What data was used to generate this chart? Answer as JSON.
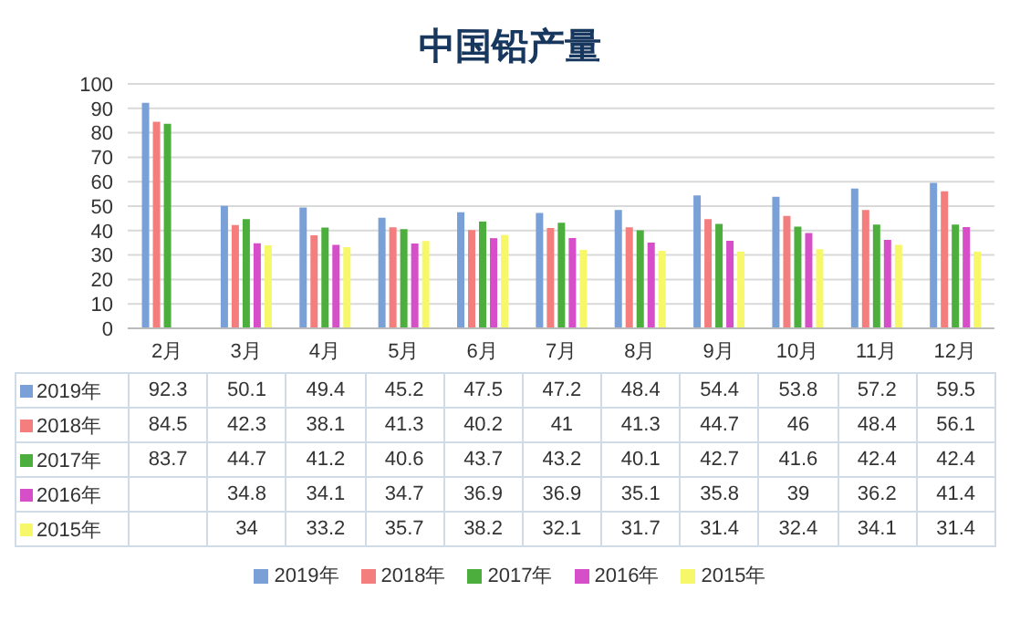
{
  "chart_data": {
    "type": "bar",
    "title": "中国铅产量",
    "categories": [
      "2月",
      "3月",
      "4月",
      "5月",
      "6月",
      "7月",
      "8月",
      "9月",
      "10月",
      "11月",
      "12月"
    ],
    "series": [
      {
        "name": "2019年",
        "color": "#7aa0d8",
        "values": [
          92.3,
          50.1,
          49.4,
          45.2,
          47.5,
          47.2,
          48.4,
          54.4,
          53.8,
          57.2,
          59.5
        ]
      },
      {
        "name": "2018年",
        "color": "#f47e7e",
        "values": [
          84.5,
          42.3,
          38.1,
          41.3,
          40.2,
          41,
          41.3,
          44.7,
          46,
          48.4,
          56.1
        ]
      },
      {
        "name": "2017年",
        "color": "#4cae3c",
        "values": [
          83.7,
          44.7,
          41.2,
          40.6,
          43.7,
          43.2,
          40.1,
          42.7,
          41.6,
          42.4,
          42.4
        ]
      },
      {
        "name": "2016年",
        "color": "#d64fc8",
        "values": [
          null,
          34.8,
          34.1,
          34.7,
          36.9,
          36.9,
          35.1,
          35.8,
          39,
          36.2,
          41.4
        ]
      },
      {
        "name": "2015年",
        "color": "#f7f76a",
        "values": [
          null,
          34,
          33.2,
          35.7,
          38.2,
          32.1,
          31.7,
          31.4,
          32.4,
          34.1,
          31.4
        ]
      }
    ],
    "ylim": [
      0,
      100
    ],
    "yticks": [
      0,
      10,
      20,
      30,
      40,
      50,
      60,
      70,
      80,
      90,
      100
    ],
    "grid": "y",
    "legend": "bottom",
    "data_labels": true
  }
}
